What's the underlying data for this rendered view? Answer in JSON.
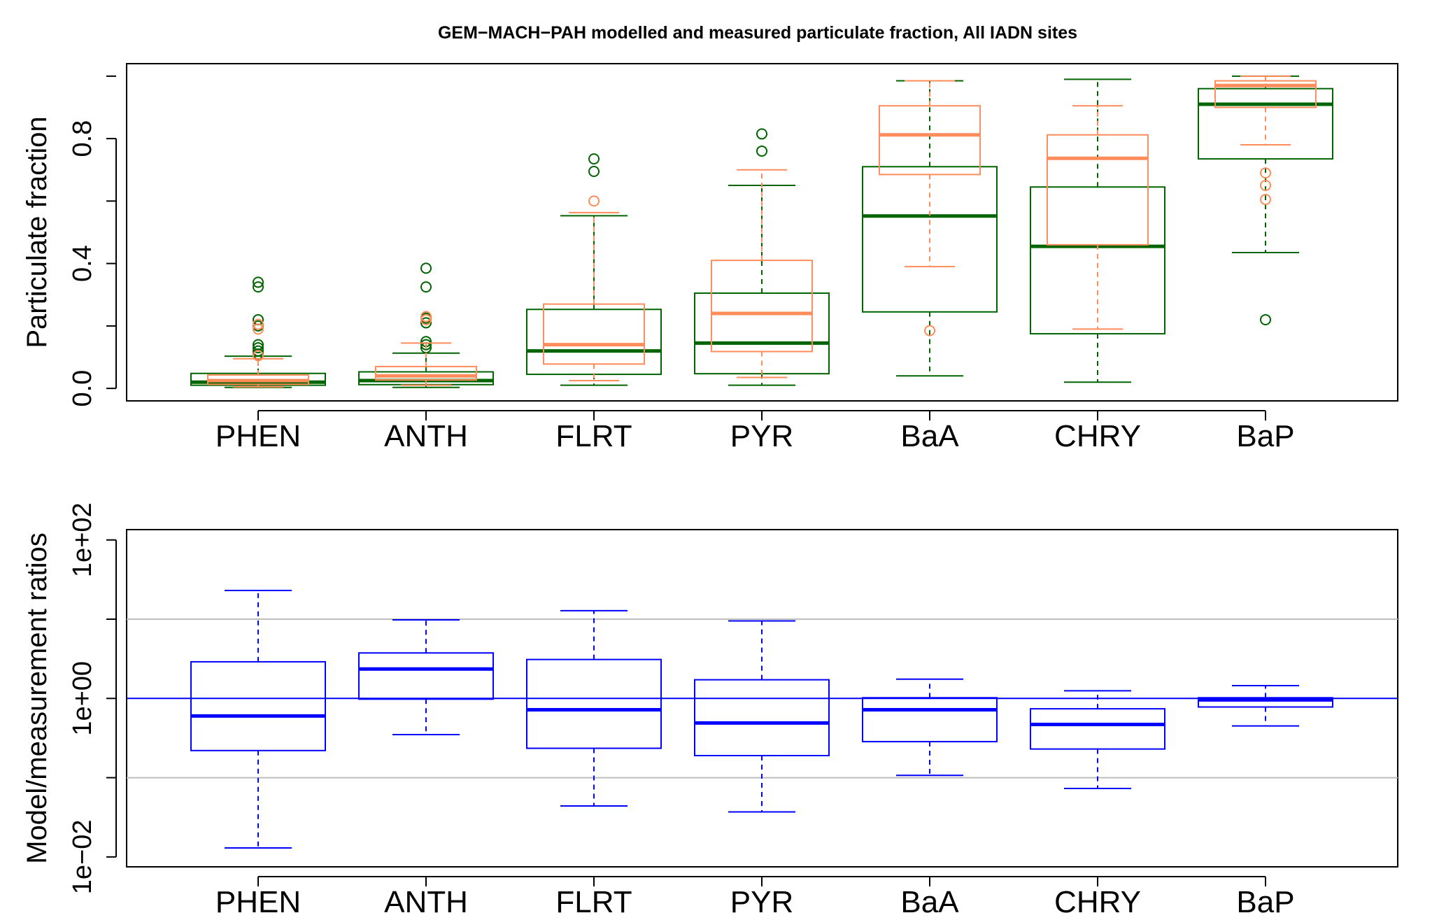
{
  "chart_data": [
    {
      "type": "box",
      "title": "GEM−MACH−PAH modelled and measured particulate fraction, All IADN sites",
      "xlabel": "",
      "ylabel": "Particulate fraction",
      "ylim": [
        -0.04,
        1.04
      ],
      "yticks": [
        "0.0",
        "0.4",
        "0.8"
      ],
      "ytick_values": [
        0.0,
        0.4,
        0.8
      ],
      "categories": [
        "PHEN",
        "ANTH",
        "FLRT",
        "PYR",
        "BaA",
        "CHRY",
        "BaP"
      ],
      "series": [
        {
          "name": "measured",
          "color": "#006400",
          "boxes": [
            {
              "whisker_low": 0.003,
              "q1": 0.01,
              "median": 0.02,
              "q3": 0.048,
              "whisker_high": 0.103,
              "outliers": [
                0.34,
                0.325,
                0.22,
                0.2,
                0.14,
                0.13,
                0.12,
                0.11
              ]
            },
            {
              "whisker_low": 0.003,
              "q1": 0.012,
              "median": 0.025,
              "q3": 0.053,
              "whisker_high": 0.113,
              "outliers": [
                0.385,
                0.325,
                0.225,
                0.21,
                0.15,
                0.14,
                0.13
              ]
            },
            {
              "whisker_low": 0.01,
              "q1": 0.045,
              "median": 0.12,
              "q3": 0.253,
              "whisker_high": 0.553,
              "outliers": [
                0.735,
                0.695
              ]
            },
            {
              "whisker_low": 0.01,
              "q1": 0.047,
              "median": 0.145,
              "q3": 0.305,
              "whisker_high": 0.65,
              "outliers": [
                0.815,
                0.76
              ]
            },
            {
              "whisker_low": 0.04,
              "q1": 0.245,
              "median": 0.552,
              "q3": 0.71,
              "whisker_high": 0.985,
              "outliers": []
            },
            {
              "whisker_low": 0.02,
              "q1": 0.175,
              "median": 0.455,
              "q3": 0.645,
              "whisker_high": 0.99,
              "outliers": []
            },
            {
              "whisker_low": 0.435,
              "q1": 0.735,
              "median": 0.91,
              "q3": 0.96,
              "whisker_high": 1.0,
              "outliers": [
                0.22
              ]
            }
          ]
        },
        {
          "name": "modelled",
          "color": "#FF8C5A",
          "boxes": [
            {
              "whisker_low": 0.005,
              "q1": 0.013,
              "median": 0.025,
              "q3": 0.043,
              "whisker_high": 0.095,
              "outliers": [
                0.205,
                0.19,
                0.105
              ]
            },
            {
              "whisker_low": 0.01,
              "q1": 0.027,
              "median": 0.04,
              "q3": 0.07,
              "whisker_high": 0.145,
              "outliers": [
                0.23,
                0.22
              ]
            },
            {
              "whisker_low": 0.025,
              "q1": 0.078,
              "median": 0.14,
              "q3": 0.27,
              "whisker_high": 0.563,
              "outliers": [
                0.6
              ]
            },
            {
              "whisker_low": 0.035,
              "q1": 0.118,
              "median": 0.24,
              "q3": 0.41,
              "whisker_high": 0.7,
              "outliers": []
            },
            {
              "whisker_low": 0.39,
              "q1": 0.685,
              "median": 0.812,
              "q3": 0.905,
              "whisker_high": 0.985,
              "outliers": [
                0.185
              ]
            },
            {
              "whisker_low": 0.19,
              "q1": 0.46,
              "median": 0.737,
              "q3": 0.812,
              "whisker_high": 0.905,
              "outliers": []
            },
            {
              "whisker_low": 0.78,
              "q1": 0.9,
              "median": 0.97,
              "q3": 0.985,
              "whisker_high": 1.0,
              "outliers": [
                0.69,
                0.65,
                0.605
              ]
            }
          ]
        }
      ]
    },
    {
      "type": "box",
      "title": "",
      "xlabel": "",
      "ylabel": "Model/measurement ratios",
      "yscale": "log",
      "ylim": [
        0.0075,
        135
      ],
      "yticks": [
        "1e−02",
        "1e+00",
        "1e+02"
      ],
      "ytick_values": [
        0.01,
        1,
        100
      ],
      "reference_lines": [
        {
          "value": 10,
          "color": "#BEBEBE"
        },
        {
          "value": 0.1,
          "color": "#BEBEBE"
        },
        {
          "value": 1,
          "color": "#0000FF"
        }
      ],
      "categories": [
        "PHEN",
        "ANTH",
        "FLRT",
        "PYR",
        "BaA",
        "CHRY",
        "BaP"
      ],
      "series": [
        {
          "name": "ratio",
          "color": "#0000FF",
          "boxes": [
            {
              "whisker_low": 0.013,
              "q1": 0.22,
              "median": 0.6,
              "q3": 2.9,
              "whisker_high": 23
            },
            {
              "whisker_low": 0.35,
              "q1": 0.98,
              "median": 2.35,
              "q3": 3.75,
              "whisker_high": 9.8
            },
            {
              "whisker_low": 0.044,
              "q1": 0.235,
              "median": 0.72,
              "q3": 3.1,
              "whisker_high": 12.8
            },
            {
              "whisker_low": 0.037,
              "q1": 0.19,
              "median": 0.49,
              "q3": 1.72,
              "whisker_high": 9.5
            },
            {
              "whisker_low": 0.107,
              "q1": 0.285,
              "median": 0.72,
              "q3": 1.02,
              "whisker_high": 1.75
            },
            {
              "whisker_low": 0.073,
              "q1": 0.23,
              "median": 0.47,
              "q3": 0.74,
              "whisker_high": 1.25
            },
            {
              "whisker_low": 0.45,
              "q1": 0.78,
              "median": 0.96,
              "q3": 1.02,
              "whisker_high": 1.45
            }
          ]
        }
      ]
    }
  ]
}
